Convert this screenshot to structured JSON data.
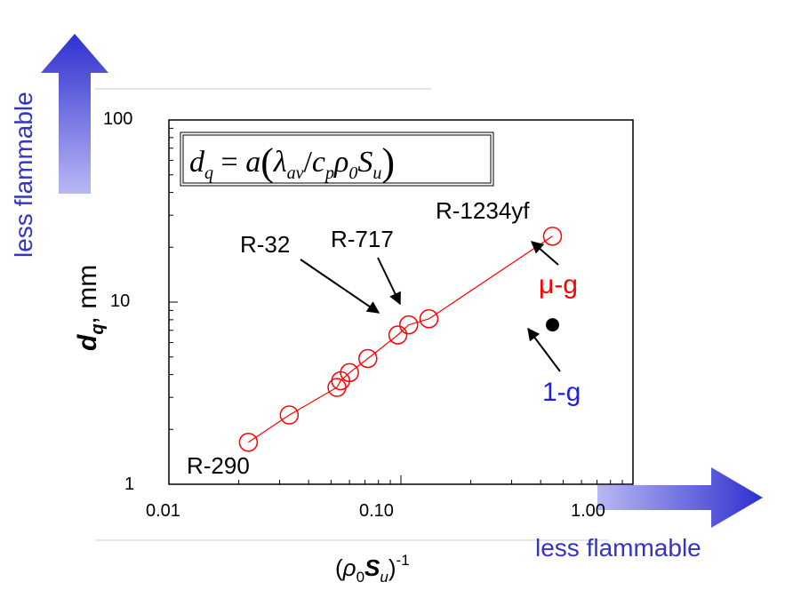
{
  "chart_data": {
    "type": "scatter",
    "x_scale": "log",
    "y_scale": "log",
    "xlim": [
      0.01,
      1.0
    ],
    "ylim": [
      1,
      100
    ],
    "x_ticks": [
      "0.01",
      "0.10",
      "1.00"
    ],
    "y_ticks": [
      "1",
      "10",
      "100"
    ],
    "xlabel": {
      "pre": "(",
      "rho": "ρ",
      "sub0": "0",
      "S": "S",
      "subu": "u",
      "close": ")",
      "sup": "-1"
    },
    "ylabel": {
      "d": "d",
      "sub": "q",
      "rest": ", mm"
    },
    "formula": {
      "lhs": "d",
      "lhs_sub": "q",
      "eq": " = ",
      "a": "a",
      "lp": "(",
      "lambda": "λ",
      "lambda_sub": "av",
      "slash": "/",
      "c": "c",
      "c_sub": "p",
      "rho": "ρ",
      "rho_sub": "0",
      "S": "S",
      "S_sub": "u",
      "rp": ")"
    },
    "series": [
      {
        "name": "μ-g",
        "color": "#ff0000",
        "marker": "open-circle",
        "line": true,
        "points": [
          {
            "x": 0.022,
            "y": 1.7
          },
          {
            "x": 0.033,
            "y": 2.4
          },
          {
            "x": 0.053,
            "y": 3.4
          },
          {
            "x": 0.055,
            "y": 3.7
          },
          {
            "x": 0.06,
            "y": 4.1
          },
          {
            "x": 0.072,
            "y": 4.9
          },
          {
            "x": 0.097,
            "y": 6.6
          },
          {
            "x": 0.108,
            "y": 7.5
          },
          {
            "x": 0.132,
            "y": 8.1
          },
          {
            "x": 0.45,
            "y": 23
          }
        ]
      },
      {
        "name": "1-g",
        "color": "#000000",
        "marker": "filled-circle",
        "line": false,
        "points": [
          {
            "x": 0.45,
            "y": 7.5
          }
        ]
      }
    ],
    "annotations": {
      "r290": "R-290",
      "r32": "R-32",
      "r717": "R-717",
      "r1234yf": "R-1234yf",
      "mu_g": "μ-g",
      "one_g": "1-g"
    },
    "side_labels": {
      "x_direction": "less flammable",
      "y_direction": "less flammable"
    },
    "colors": {
      "series_red": "#ff0000",
      "one_g_blue": "#2020e0",
      "arrow_blue": "#3b3bd6",
      "arrow_light": "#a8a8f0"
    }
  }
}
